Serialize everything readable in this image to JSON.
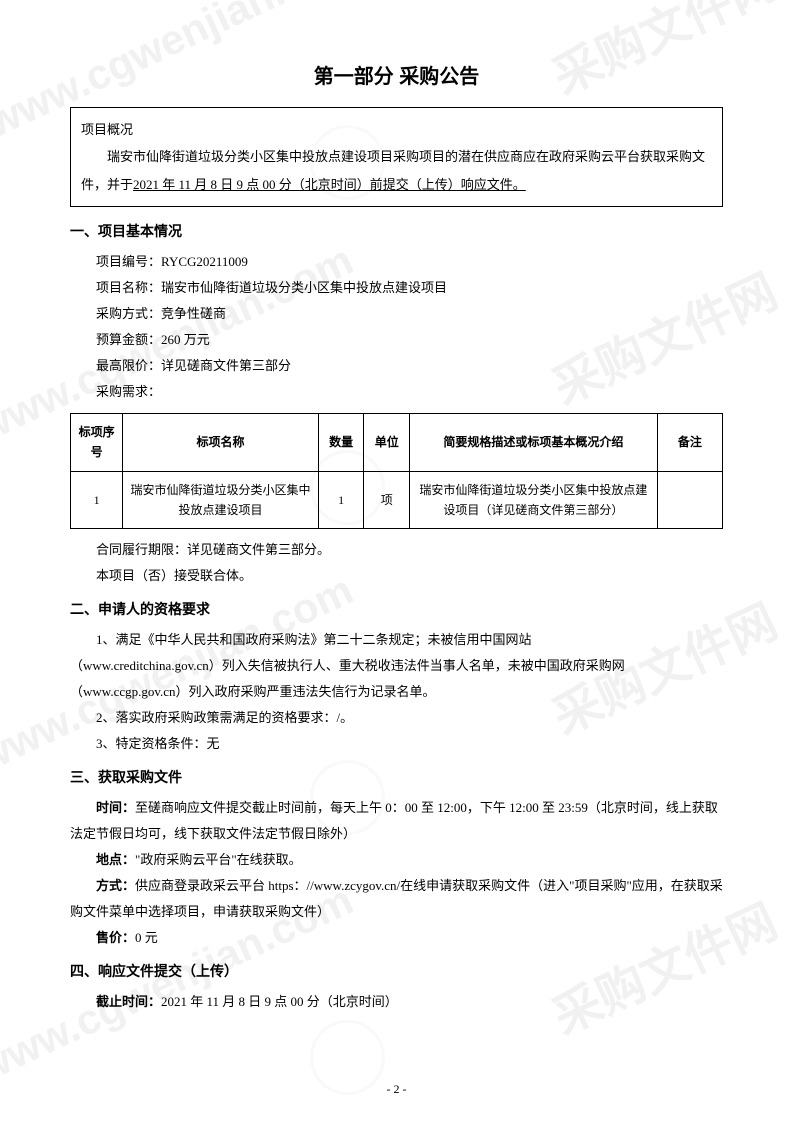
{
  "watermarks": {
    "url": "www.cgwenjian.com",
    "cn": "采购文件网"
  },
  "page_title": "第一部分 采购公告",
  "overview": {
    "label": "项目概况",
    "text_before": "瑞安市仙降街道垃圾分类小区集中投放点建设项目采购项目的潜在供应商应在政府采购云平台获取采购文件，并于",
    "underlined": "2021 年 11 月 8 日 9 点 00 分（北京时间）前提交（上传）响应文件。"
  },
  "section1": {
    "header": "一、项目基本情况",
    "project_code_label": "项目编号：",
    "project_code": "RYCG20211009",
    "project_name_label": "项目名称：",
    "project_name": "瑞安市仙降街道垃圾分类小区集中投放点建设项目",
    "method_label": "采购方式：",
    "method": "竞争性磋商",
    "budget_label": "预算金额：",
    "budget": "260 万元",
    "max_price_label": "最高限价：",
    "max_price": "详见磋商文件第三部分",
    "demand_label": "采购需求：",
    "table": {
      "headers": {
        "seq": "标项序号",
        "name": "标项名称",
        "qty": "数量",
        "unit": "单位",
        "desc": "简要规格描述或标项基本概况介绍",
        "note": "备注"
      },
      "row": {
        "seq": "1",
        "name": "瑞安市仙降街道垃圾分类小区集中投放点建设项目",
        "qty": "1",
        "unit": "项",
        "desc": "瑞安市仙降街道垃圾分类小区集中投放点建设项目（详见磋商文件第三部分）",
        "note": ""
      }
    },
    "contract_period": "合同履行期限：详见磋商文件第三部分。",
    "consortium": "本项目（否）接受联合体。"
  },
  "section2": {
    "header": "二、申请人的资格要求",
    "item1_a": "1、满足《中华人民共和国政府采购法》第二十二条规定；未被信用中国网站",
    "item1_b": "（www.creditchina.gov.cn）列入失信被执行人、重大税收违法件当事人名单，未被中国政府采购网（www.ccgp.gov.cn）列入政府采购严重违法失信行为记录名单。",
    "item2": "2、落实政府采购政策需满足的资格要求：/。",
    "item3": "3、特定资格条件：无"
  },
  "section3": {
    "header": "三、获取采购文件",
    "time_label": "时间：",
    "time_text": "至磋商响应文件提交截止时间前，每天上午 0：00 至 12:00，下午 12:00 至 23:59（北京时间，线上获取法定节假日均可，线下获取文件法定节假日除外）",
    "location_label": "地点：",
    "location_text": "\"政府采购云平台\"在线获取。",
    "method_label": "方式：",
    "method_text": "供应商登录政采云平台 https：//www.zcygov.cn/在线申请获取采购文件（进入\"项目采购\"应用，在获取采购文件菜单中选择项目，申请获取采购文件）",
    "price_label": "售价：",
    "price_text": "0 元"
  },
  "section4": {
    "header": "四、响应文件提交（上传）",
    "deadline_label": "截止时间：",
    "deadline_text": "2021 年 11 月 8 日 9 点 00 分（北京时间）"
  },
  "page_number": "- 2 -"
}
